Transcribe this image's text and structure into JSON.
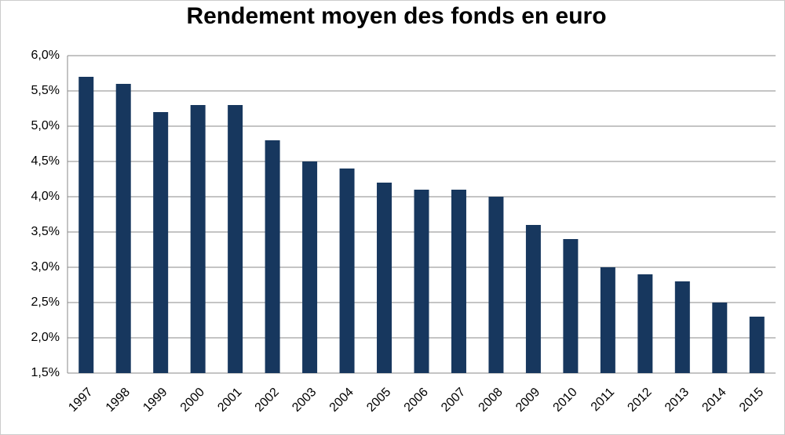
{
  "chart_data": {
    "type": "bar",
    "title": "Rendement moyen des fonds en euro",
    "categories": [
      "1997",
      "1998",
      "1999",
      "2000",
      "2001",
      "2002",
      "2003",
      "2004",
      "2005",
      "2006",
      "2007",
      "2008",
      "2009",
      "2010",
      "2011",
      "2012",
      "2013",
      "2014",
      "2015"
    ],
    "values": [
      5.7,
      5.6,
      5.2,
      5.3,
      5.3,
      4.8,
      4.5,
      4.4,
      4.2,
      4.1,
      4.1,
      4.0,
      3.6,
      3.4,
      3.0,
      2.9,
      2.8,
      2.5,
      2.3
    ],
    "color": "#17375e",
    "ylim": [
      1.5,
      6.0
    ],
    "yticks": [
      {
        "value": 1.5,
        "label": "1,5%"
      },
      {
        "value": 2.0,
        "label": "2,0%"
      },
      {
        "value": 2.5,
        "label": "2,5%"
      },
      {
        "value": 3.0,
        "label": "3,0%"
      },
      {
        "value": 3.5,
        "label": "3,5%"
      },
      {
        "value": 4.0,
        "label": "4,0%"
      },
      {
        "value": 4.5,
        "label": "4,5%"
      },
      {
        "value": 5.0,
        "label": "5,0%"
      },
      {
        "value": 5.5,
        "label": "5,5%"
      },
      {
        "value": 6.0,
        "label": "6,0%"
      }
    ],
    "grid": true
  }
}
